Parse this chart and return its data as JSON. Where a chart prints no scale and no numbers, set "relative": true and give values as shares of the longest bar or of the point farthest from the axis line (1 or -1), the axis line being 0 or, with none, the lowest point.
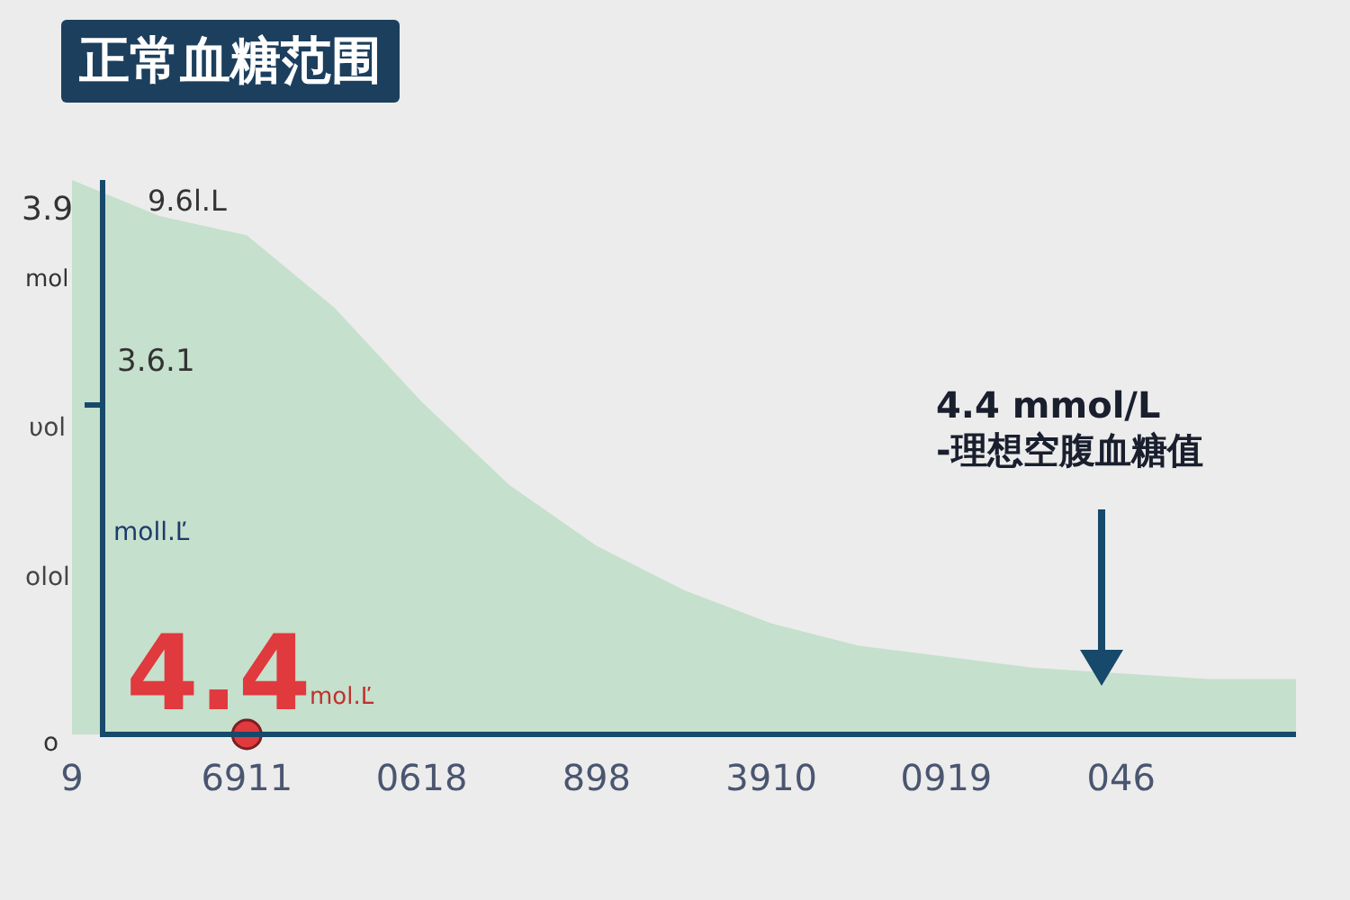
{
  "chart_data": {
    "type": "area",
    "title": "正常血糖范围",
    "relative": true,
    "grid": false,
    "legend": false,
    "categories": [
      "9",
      null,
      "6911",
      null,
      "0618",
      null,
      "898",
      null,
      "3910",
      null,
      "0919",
      null,
      "046",
      null,
      null
    ],
    "series": [
      {
        "color": "#c5e0cc",
        "values": [
          1,
          0.935,
          0.9,
          0.77,
          0.6,
          0.45,
          0.34,
          0.26,
          0.2,
          0.16,
          0.14,
          0.12,
          0.11,
          0.1,
          0.1
        ]
      },
      {
        "type": "scatter",
        "color": "#e0393e",
        "marker": "circle",
        "values": [
          null,
          null,
          0,
          null,
          null,
          null,
          null,
          null,
          null,
          null,
          null,
          null,
          null,
          null,
          null
        ]
      }
    ],
    "annotations": [
      "3.9",
      "mol",
      "υol",
      "olol",
      "o",
      "9.6l.L",
      "3.6.1",
      "moll.Ľ",
      "4.4",
      "mol.Ľ",
      "4.4 mmol/L\n-理想空腹血糖值"
    ]
  }
}
